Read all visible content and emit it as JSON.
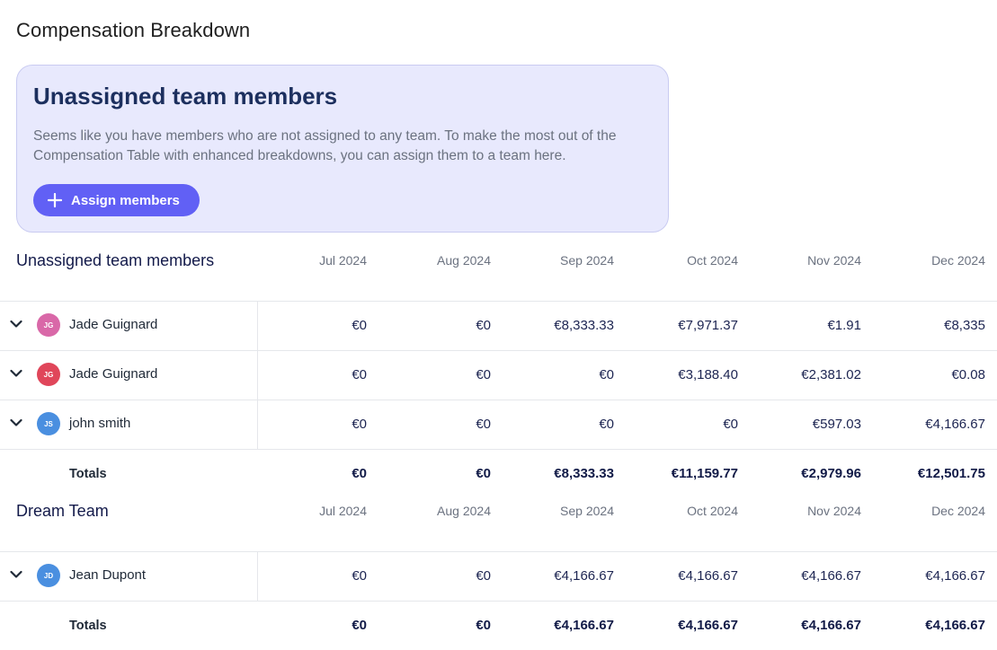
{
  "page": {
    "title": "Compensation Breakdown"
  },
  "banner": {
    "title": "Unassigned team members",
    "text": "Seems like you have members who are not assigned to any team. To make the most out of the Compensation Table with enhanced breakdowns, you can assign them to a team here.",
    "button_label": "Assign members",
    "bg_color": "#e8e9fd",
    "button_color": "#6160f5"
  },
  "sections": [
    {
      "name": "Unassigned team members",
      "months": [
        "Jul 2024",
        "Aug 2024",
        "Sep 2024",
        "Oct 2024",
        "Nov 2024",
        "Dec 2024"
      ],
      "rows": [
        {
          "initials": "JG",
          "name": "Jade Guignard",
          "avatar_color": "#d968a8",
          "values": [
            "€0",
            "€0",
            "€8,333.33",
            "€7,971.37",
            "€1.91",
            "€8,335"
          ]
        },
        {
          "initials": "JG",
          "name": "Jade Guignard",
          "avatar_color": "#e0465a",
          "values": [
            "€0",
            "€0",
            "€0",
            "€3,188.40",
            "€2,381.02",
            "€0.08"
          ]
        },
        {
          "initials": "JS",
          "name": "john smith",
          "avatar_color": "#4a8fe0",
          "values": [
            "€0",
            "€0",
            "€0",
            "€0",
            "€597.03",
            "€4,166.67"
          ]
        }
      ],
      "totals_label": "Totals",
      "totals": [
        "€0",
        "€0",
        "€8,333.33",
        "€11,159.77",
        "€2,979.96",
        "€12,501.75"
      ]
    },
    {
      "name": "Dream Team",
      "months": [
        "Jul 2024",
        "Aug 2024",
        "Sep 2024",
        "Oct 2024",
        "Nov 2024",
        "Dec 2024"
      ],
      "rows": [
        {
          "initials": "JD",
          "name": "Jean Dupont",
          "avatar_color": "#4a8fe0",
          "values": [
            "€0",
            "€0",
            "€4,166.67",
            "€4,166.67",
            "€4,166.67",
            "€4,166.67"
          ]
        }
      ],
      "totals_label": "Totals",
      "totals": [
        "€0",
        "€0",
        "€4,166.67",
        "€4,166.67",
        "€4,166.67",
        "€4,166.67"
      ]
    }
  ]
}
